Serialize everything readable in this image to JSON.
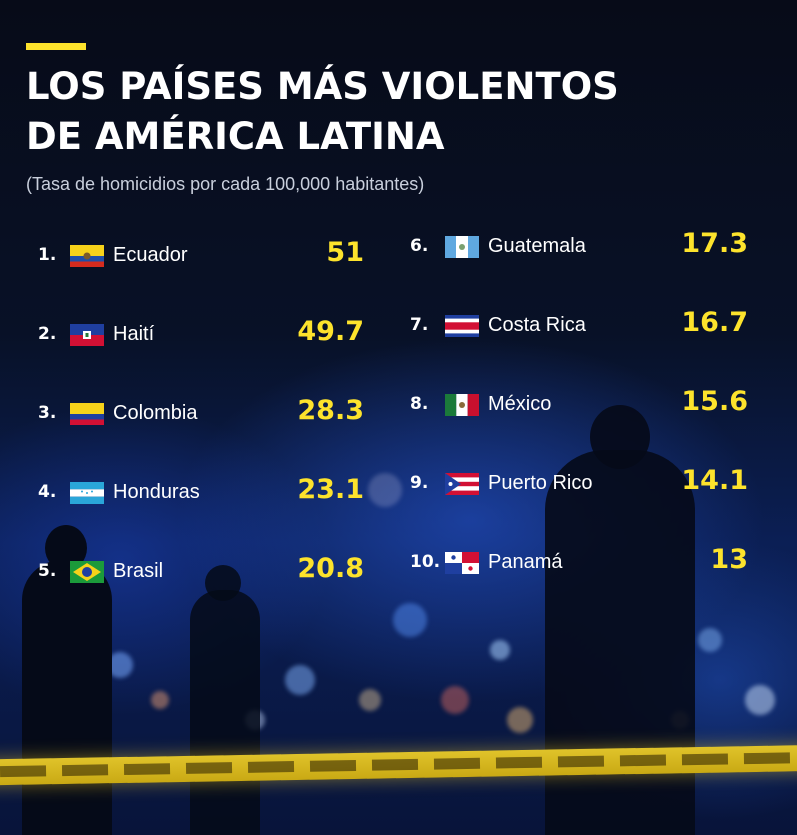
{
  "header": {
    "title_line1": "LOS PAÍSES MÁS VIOLENTOS",
    "title_line2": "DE AMÉRICA LATINA",
    "subtitle": "(Tasa de homicidios por cada 100,000 habitantes)"
  },
  "colors": {
    "accent": "#fde32c",
    "text": "#ffffff",
    "background": "#081127"
  },
  "chart_data": {
    "type": "table",
    "title": "LOS PAÍSES MÁS VIOLENTOS DE AMÉRICA LATINA",
    "subtitle": "(Tasa de homicidios por cada 100,000 habitantes)",
    "rows": [
      {
        "rank": "1.",
        "country": "Ecuador",
        "value": "51",
        "flag": "ecuador-flag-icon"
      },
      {
        "rank": "2.",
        "country": "Haití",
        "value": "49.7",
        "flag": "haiti-flag-icon"
      },
      {
        "rank": "3.",
        "country": "Colombia",
        "value": "28.3",
        "flag": "colombia-flag-icon"
      },
      {
        "rank": "4.",
        "country": "Honduras",
        "value": "23.1",
        "flag": "honduras-flag-icon"
      },
      {
        "rank": "5.",
        "country": "Brasil",
        "value": "20.8",
        "flag": "brazil-flag-icon"
      },
      {
        "rank": "6.",
        "country": "Guatemala",
        "value": "17.3",
        "flag": "guatemala-flag-icon"
      },
      {
        "rank": "7.",
        "country": "Costa Rica",
        "value": "16.7",
        "flag": "costa-rica-flag-icon"
      },
      {
        "rank": "8.",
        "country": "México",
        "value": "15.6",
        "flag": "mexico-flag-icon"
      },
      {
        "rank": "9.",
        "country": "Puerto Rico",
        "value": "14.1",
        "flag": "puerto-rico-flag-icon"
      },
      {
        "rank": "10.",
        "country": "Panamá",
        "value": "13",
        "flag": "panama-flag-icon"
      }
    ]
  }
}
